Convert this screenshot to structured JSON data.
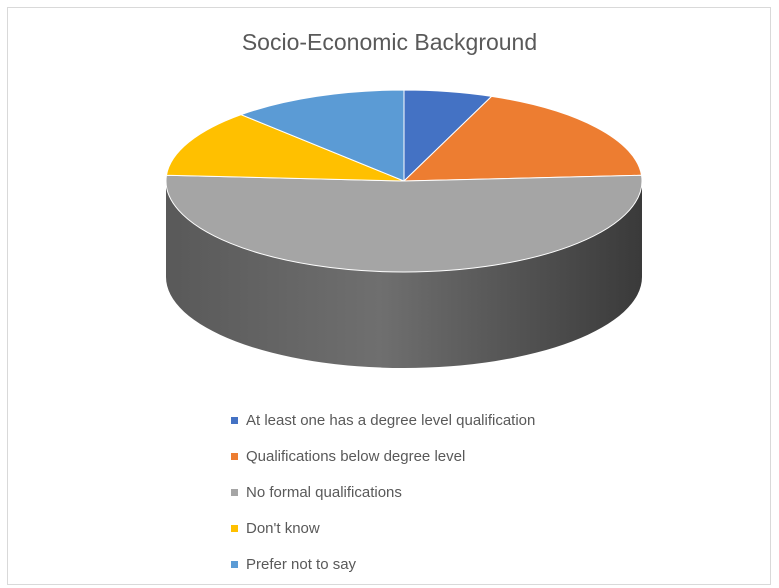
{
  "chart_data": {
    "type": "pie",
    "title": "Socio-Economic Background",
    "legend_position": "bottom",
    "slices": [
      {
        "label": "At least one has a degree level qualification",
        "value": 6,
        "color": "#4472c4",
        "side_color": "#2f5597"
      },
      {
        "label": "Qualifications below degree level",
        "value": 18,
        "color": "#ed7d31",
        "side_color": "#a5571f"
      },
      {
        "label": "No formal qualifications",
        "value": 52,
        "color": "#a5a5a5",
        "side_color": "#6f6f6f"
      },
      {
        "label": "Don't know",
        "value": 12,
        "color": "#ffc000",
        "side_color": "#b38600"
      },
      {
        "label": "Prefer not to say",
        "value": 12,
        "color": "#5b9bd5",
        "side_color": "#3e74a6"
      }
    ]
  }
}
